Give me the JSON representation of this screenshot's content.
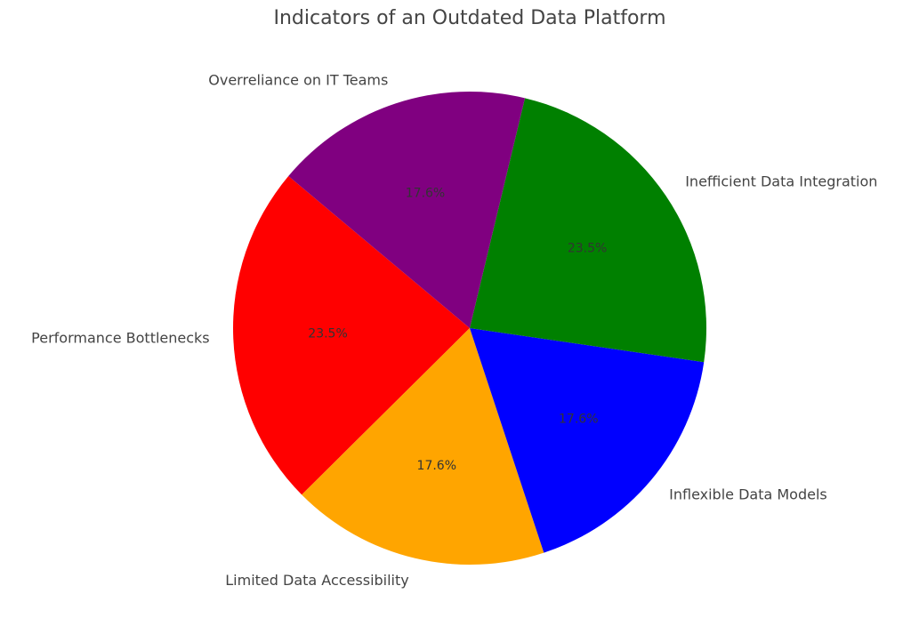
{
  "chart_data": {
    "type": "pie",
    "title": "Indicators of an Outdated Data Platform",
    "categories": [
      "Performance Bottlenecks",
      "Limited Data Accessibility",
      "Inflexible Data Models",
      "Inefficient Data Integration",
      "Overreliance on IT Teams"
    ],
    "values": [
      23.5,
      17.6,
      17.6,
      23.5,
      17.6
    ],
    "value_labels": [
      "23.5%",
      "17.6%",
      "17.6%",
      "23.5%",
      "17.6%"
    ],
    "colors": [
      "#ff0000",
      "#ffa500",
      "#0000ff",
      "#008000",
      "#800080"
    ]
  }
}
